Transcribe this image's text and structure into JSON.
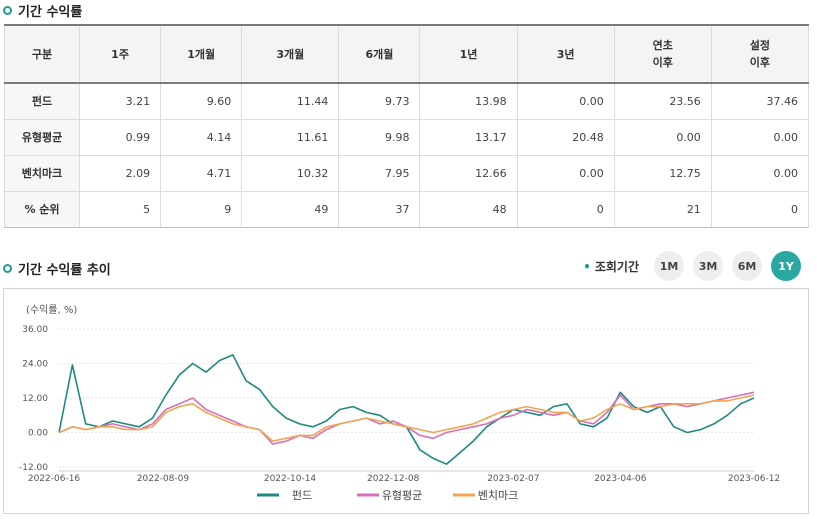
{
  "section1": {
    "title": "기간 수익률"
  },
  "table": {
    "headers": [
      "구분",
      "1주",
      "1개월",
      "3개월",
      "6개월",
      "1년",
      "3년",
      "연초\n이후",
      "설정\n이후"
    ],
    "rows": [
      {
        "label": "펀드",
        "values": [
          "3.21",
          "9.60",
          "11.44",
          "9.73",
          "13.98",
          "0.00",
          "23.56",
          "37.46"
        ]
      },
      {
        "label": "유형평균",
        "values": [
          "0.99",
          "4.14",
          "11.61",
          "9.98",
          "13.17",
          "20.48",
          "0.00",
          "0.00"
        ]
      },
      {
        "label": "벤치마크",
        "values": [
          "2.09",
          "4.71",
          "10.32",
          "7.95",
          "12.66",
          "0.00",
          "12.75",
          "0.00"
        ]
      },
      {
        "label": "% 순위",
        "values": [
          "5",
          "9",
          "49",
          "37",
          "48",
          "0",
          "21",
          "0"
        ]
      }
    ]
  },
  "section2": {
    "title": "기간 수익률 추이"
  },
  "period": {
    "label": "조회기간",
    "buttons": [
      {
        "label": "1M",
        "active": false
      },
      {
        "label": "3M",
        "active": false
      },
      {
        "label": "6M",
        "active": false
      },
      {
        "label": "1Y",
        "active": true
      }
    ]
  },
  "colors": {
    "fund": "#1f8a80",
    "category_avg": "#d86fb6",
    "benchmark": "#f0a550",
    "accent": "#2aa7a0"
  },
  "chart_data": {
    "type": "line",
    "ylabel": "(수익률, %)",
    "ylim": [
      -12,
      36
    ],
    "yticks": [
      "36.00",
      "24.00",
      "12.00",
      "0.00",
      "-12.00"
    ],
    "x_tick_labels": [
      "2022-06-16",
      "2022-08-09",
      "2022-10-14",
      "2022-12-08",
      "2023-02-07",
      "2023-04-06",
      "2023-06-12"
    ],
    "x": [
      "2022-06-16",
      "2022-06-23",
      "2022-06-30",
      "2022-07-07",
      "2022-07-14",
      "2022-07-21",
      "2022-07-28",
      "2022-08-04",
      "2022-08-11",
      "2022-08-18",
      "2022-08-25",
      "2022-09-01",
      "2022-09-08",
      "2022-09-15",
      "2022-09-22",
      "2022-09-29",
      "2022-10-06",
      "2022-10-13",
      "2022-10-20",
      "2022-10-27",
      "2022-11-03",
      "2022-11-10",
      "2022-11-17",
      "2022-11-24",
      "2022-12-01",
      "2022-12-08",
      "2022-12-15",
      "2022-12-22",
      "2022-12-29",
      "2023-01-05",
      "2023-01-12",
      "2023-01-19",
      "2023-01-26",
      "2023-02-02",
      "2023-02-09",
      "2023-02-16",
      "2023-02-23",
      "2023-03-02",
      "2023-03-09",
      "2023-03-16",
      "2023-03-23",
      "2023-03-30",
      "2023-04-06",
      "2023-04-13",
      "2023-04-20",
      "2023-04-27",
      "2023-05-04",
      "2023-05-11",
      "2023-05-18",
      "2023-05-25",
      "2023-06-01",
      "2023-06-08",
      "2023-06-12"
    ],
    "series": [
      {
        "name": "펀드",
        "color": "#1f8a80",
        "values": [
          0,
          23.5,
          3,
          2,
          4,
          3,
          2,
          5,
          13,
          20,
          24,
          21,
          25,
          27,
          18,
          15,
          9,
          5,
          3,
          2,
          4,
          8,
          9,
          7,
          6,
          3,
          2,
          -6,
          -9,
          -11,
          -7,
          -3,
          2,
          5,
          8,
          7,
          6,
          9,
          10,
          3,
          2,
          5,
          14,
          9,
          7,
          9,
          2,
          0,
          1,
          3,
          6,
          10,
          12
        ]
      },
      {
        "name": "유형평균",
        "color": "#d86fb6",
        "values": [
          0,
          2,
          1,
          2,
          3,
          2,
          1,
          3,
          8,
          10,
          12,
          8,
          6,
          4,
          2,
          1,
          -4,
          -3,
          -1,
          -2,
          1,
          3,
          4,
          5,
          3,
          4,
          2,
          -1,
          -2,
          0,
          1,
          2,
          3,
          5,
          6,
          8,
          7,
          6,
          7,
          4,
          3,
          7,
          13,
          8,
          9,
          10,
          10,
          9,
          10,
          11,
          12,
          13,
          14
        ]
      },
      {
        "name": "벤치마크",
        "color": "#f0a550",
        "values": [
          0,
          2,
          1,
          2,
          2,
          1,
          1,
          2,
          7,
          9,
          10,
          7,
          5,
          3,
          2,
          1,
          -3,
          -2,
          -1,
          -1,
          2,
          3,
          4,
          5,
          4,
          3,
          2,
          1,
          0,
          1,
          2,
          3,
          5,
          7,
          8,
          9,
          8,
          7,
          7,
          4,
          5,
          8,
          10,
          8,
          9,
          9,
          10,
          10,
          10,
          11,
          11,
          12,
          13
        ]
      }
    ]
  }
}
